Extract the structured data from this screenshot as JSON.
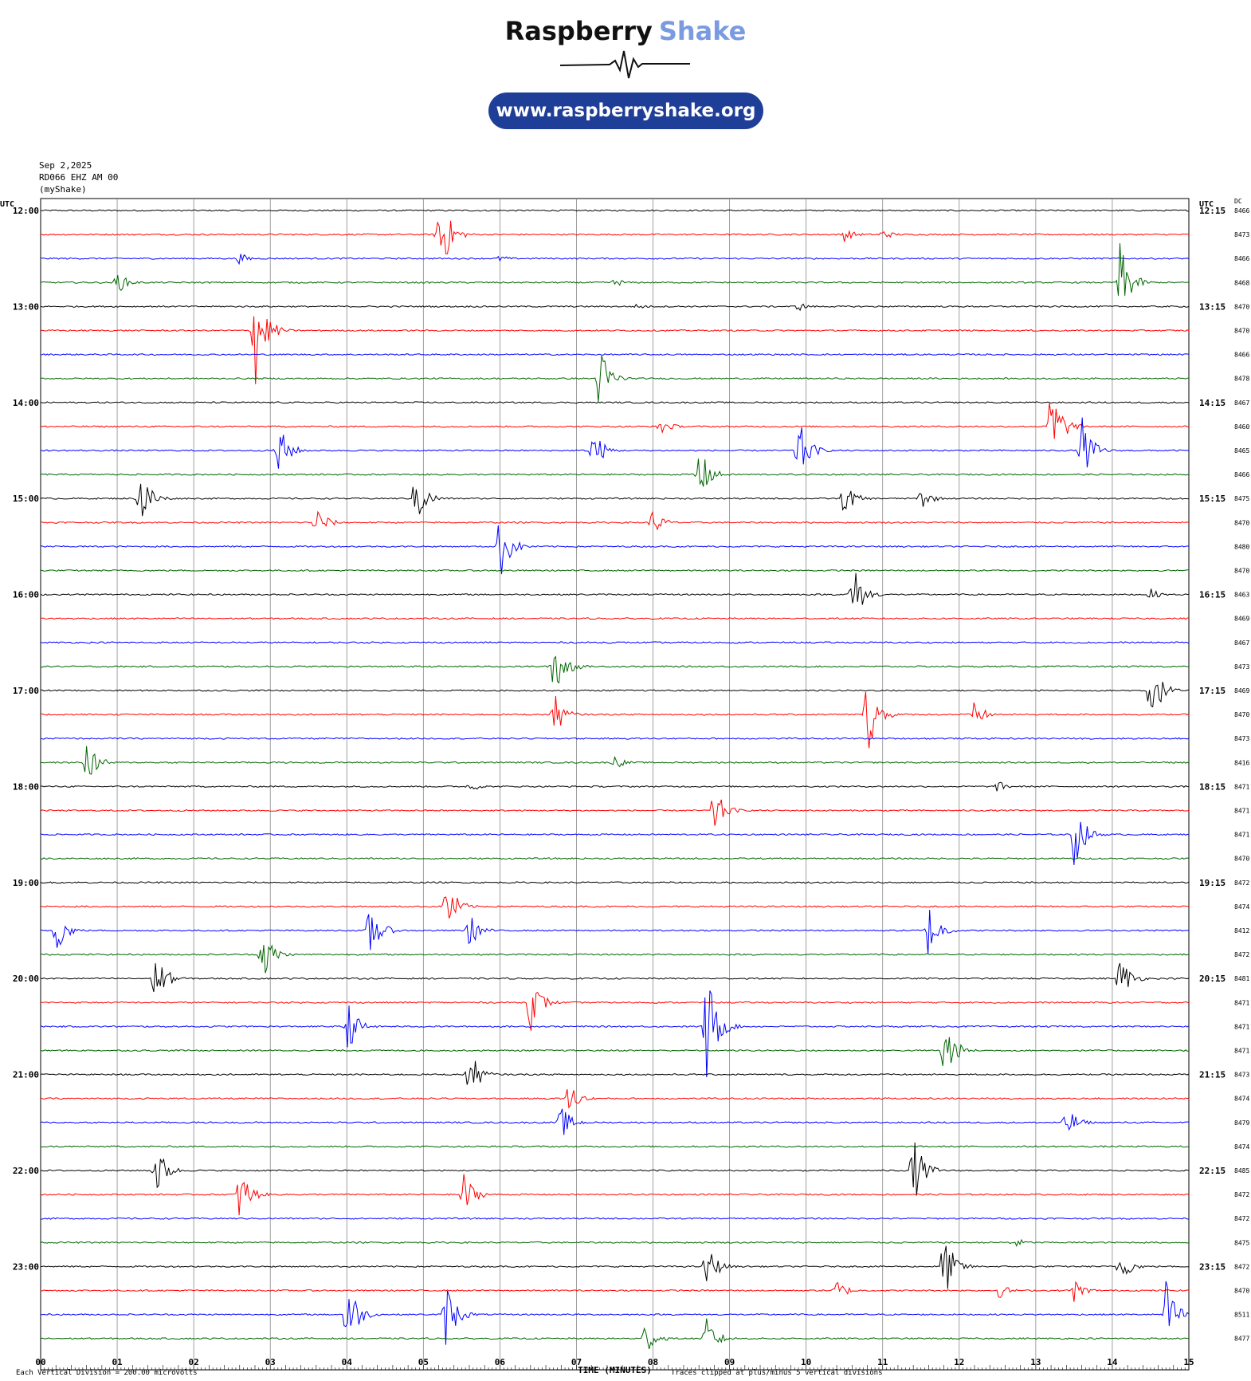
{
  "brand": {
    "name_a": "Raspberry",
    "name_b": "Shake",
    "url": "www.raspberryshake.org",
    "accent": "#7b9be0",
    "pill": "#1f3e98"
  },
  "header": {
    "date": "Sep 2,2025",
    "station": "RD066 EHZ AM 00",
    "source": "(myShake)"
  },
  "axes": {
    "left_unit": "UTC",
    "right_unit": "UTC",
    "dc_label": "DC",
    "x_title": "TIME (MINUTES)",
    "x_ticks": [
      "00",
      "01",
      "02",
      "03",
      "04",
      "05",
      "06",
      "07",
      "08",
      "09",
      "10",
      "11",
      "12",
      "13",
      "14",
      "15"
    ]
  },
  "footer": {
    "division": "Each Vertical Division =  200.00 microvolts",
    "clip": "Traces clipped at plus/minus 5 vertical divisions"
  },
  "colors": [
    "#000000",
    "#ff0000",
    "#0000ff",
    "#006400"
  ],
  "chart_data": {
    "type": "line",
    "x_range_minutes": [
      0,
      15
    ],
    "rows_per_hour": 4,
    "left_time_labels": [
      "12:00",
      "13:00",
      "14:00",
      "15:00",
      "16:00",
      "17:00",
      "18:00",
      "19:00",
      "20:00",
      "21:00",
      "22:00",
      "23:00"
    ],
    "right_time_labels": [
      "12:15",
      "13:15",
      "14:15",
      "15:15",
      "16:15",
      "17:15",
      "18:15",
      "19:15",
      "20:15",
      "21:15",
      "22:15",
      "23:15"
    ],
    "dc_values": [
      "8466",
      "8473",
      "8466",
      "8468",
      "8470",
      "8470",
      "8466",
      "8478",
      "8467",
      "8460",
      "8465",
      "8466",
      "8475",
      "8470",
      "8480",
      "8470",
      "8463",
      "8469",
      "8467",
      "8473",
      "8469",
      "8470",
      "8473",
      "8416",
      "8471",
      "8471",
      "8471",
      "8470",
      "8472",
      "8474",
      "8412",
      "8472",
      "8481",
      "8471",
      "8471",
      "8471",
      "8473",
      "8474",
      "8479",
      "8474",
      "8485",
      "8472",
      "8472",
      "8475",
      "8472",
      "8470",
      "8511",
      "8477"
    ],
    "events": [
      {
        "row": 1,
        "minute": 5.2,
        "amp": 4.5
      },
      {
        "row": 1,
        "minute": 10.5,
        "amp": 0.6
      },
      {
        "row": 1,
        "minute": 11.0,
        "amp": 0.5
      },
      {
        "row": 2,
        "minute": 2.6,
        "amp": 0.5
      },
      {
        "row": 2,
        "minute": 6.0,
        "amp": 0.3
      },
      {
        "row": 3,
        "minute": 1.0,
        "amp": 1.0
      },
      {
        "row": 3,
        "minute": 7.5,
        "amp": 0.4
      },
      {
        "row": 3,
        "minute": 14.1,
        "amp": 3.5
      },
      {
        "row": 4,
        "minute": 7.8,
        "amp": 0.3
      },
      {
        "row": 4,
        "minute": 9.9,
        "amp": 0.4
      },
      {
        "row": 5,
        "minute": 2.8,
        "amp": 5.0
      },
      {
        "row": 7,
        "minute": 7.3,
        "amp": 3.0
      },
      {
        "row": 9,
        "minute": 8.1,
        "amp": 0.8
      },
      {
        "row": 9,
        "minute": 13.2,
        "amp": 4.0
      },
      {
        "row": 10,
        "minute": 3.1,
        "amp": 2.5
      },
      {
        "row": 10,
        "minute": 7.2,
        "amp": 2.2
      },
      {
        "row": 10,
        "minute": 9.9,
        "amp": 2.8
      },
      {
        "row": 10,
        "minute": 13.6,
        "amp": 3.0
      },
      {
        "row": 11,
        "minute": 8.6,
        "amp": 2.5
      },
      {
        "row": 12,
        "minute": 1.3,
        "amp": 3.0
      },
      {
        "row": 12,
        "minute": 4.9,
        "amp": 2.5
      },
      {
        "row": 12,
        "minute": 10.5,
        "amp": 1.5
      },
      {
        "row": 12,
        "minute": 11.5,
        "amp": 1.0
      },
      {
        "row": 13,
        "minute": 3.6,
        "amp": 1.5
      },
      {
        "row": 13,
        "minute": 8.0,
        "amp": 1.2
      },
      {
        "row": 14,
        "minute": 6.0,
        "amp": 3.0
      },
      {
        "row": 16,
        "minute": 10.6,
        "amp": 3.0
      },
      {
        "row": 16,
        "minute": 14.5,
        "amp": 0.5
      },
      {
        "row": 19,
        "minute": 6.7,
        "amp": 3.5
      },
      {
        "row": 20,
        "minute": 14.5,
        "amp": 3.0
      },
      {
        "row": 21,
        "minute": 6.7,
        "amp": 2.0
      },
      {
        "row": 21,
        "minute": 10.8,
        "amp": 3.5
      },
      {
        "row": 21,
        "minute": 12.2,
        "amp": 1.2
      },
      {
        "row": 23,
        "minute": 0.6,
        "amp": 2.0
      },
      {
        "row": 23,
        "minute": 7.5,
        "amp": 0.6
      },
      {
        "row": 24,
        "minute": 5.6,
        "amp": 0.5
      },
      {
        "row": 24,
        "minute": 12.5,
        "amp": 0.5
      },
      {
        "row": 25,
        "minute": 8.8,
        "amp": 2.0
      },
      {
        "row": 26,
        "minute": 13.5,
        "amp": 3.0
      },
      {
        "row": 29,
        "minute": 5.3,
        "amp": 2.5
      },
      {
        "row": 30,
        "minute": 0.2,
        "amp": 2.0
      },
      {
        "row": 30,
        "minute": 4.3,
        "amp": 2.5
      },
      {
        "row": 30,
        "minute": 5.6,
        "amp": 1.5
      },
      {
        "row": 30,
        "minute": 11.6,
        "amp": 2.5
      },
      {
        "row": 31,
        "minute": 2.9,
        "amp": 2.5
      },
      {
        "row": 32,
        "minute": 1.5,
        "amp": 2.5
      },
      {
        "row": 32,
        "minute": 14.1,
        "amp": 2.0
      },
      {
        "row": 33,
        "minute": 6.4,
        "amp": 2.5
      },
      {
        "row": 34,
        "minute": 4.0,
        "amp": 2.5
      },
      {
        "row": 34,
        "minute": 8.7,
        "amp": 5.0
      },
      {
        "row": 35,
        "minute": 11.8,
        "amp": 3.0
      },
      {
        "row": 36,
        "minute": 5.6,
        "amp": 2.2
      },
      {
        "row": 37,
        "minute": 6.9,
        "amp": 1.5
      },
      {
        "row": 38,
        "minute": 6.8,
        "amp": 1.5
      },
      {
        "row": 38,
        "minute": 13.4,
        "amp": 1.5
      },
      {
        "row": 40,
        "minute": 1.5,
        "amp": 2.5
      },
      {
        "row": 40,
        "minute": 11.4,
        "amp": 3.0
      },
      {
        "row": 41,
        "minute": 2.6,
        "amp": 2.5
      },
      {
        "row": 41,
        "minute": 5.5,
        "amp": 2.5
      },
      {
        "row": 43,
        "minute": 12.7,
        "amp": 0.6
      },
      {
        "row": 44,
        "minute": 8.7,
        "amp": 2.0
      },
      {
        "row": 44,
        "minute": 11.8,
        "amp": 3.0
      },
      {
        "row": 44,
        "minute": 14.1,
        "amp": 1.5
      },
      {
        "row": 45,
        "minute": 10.4,
        "amp": 1.0
      },
      {
        "row": 45,
        "minute": 12.5,
        "amp": 0.8
      },
      {
        "row": 45,
        "minute": 13.5,
        "amp": 1.0
      },
      {
        "row": 46,
        "minute": 4.0,
        "amp": 3.5
      },
      {
        "row": 46,
        "minute": 5.3,
        "amp": 3.0
      },
      {
        "row": 46,
        "minute": 14.7,
        "amp": 3.0
      },
      {
        "row": 47,
        "minute": 7.9,
        "amp": 1.5
      },
      {
        "row": 47,
        "minute": 8.7,
        "amp": 2.0
      }
    ]
  }
}
